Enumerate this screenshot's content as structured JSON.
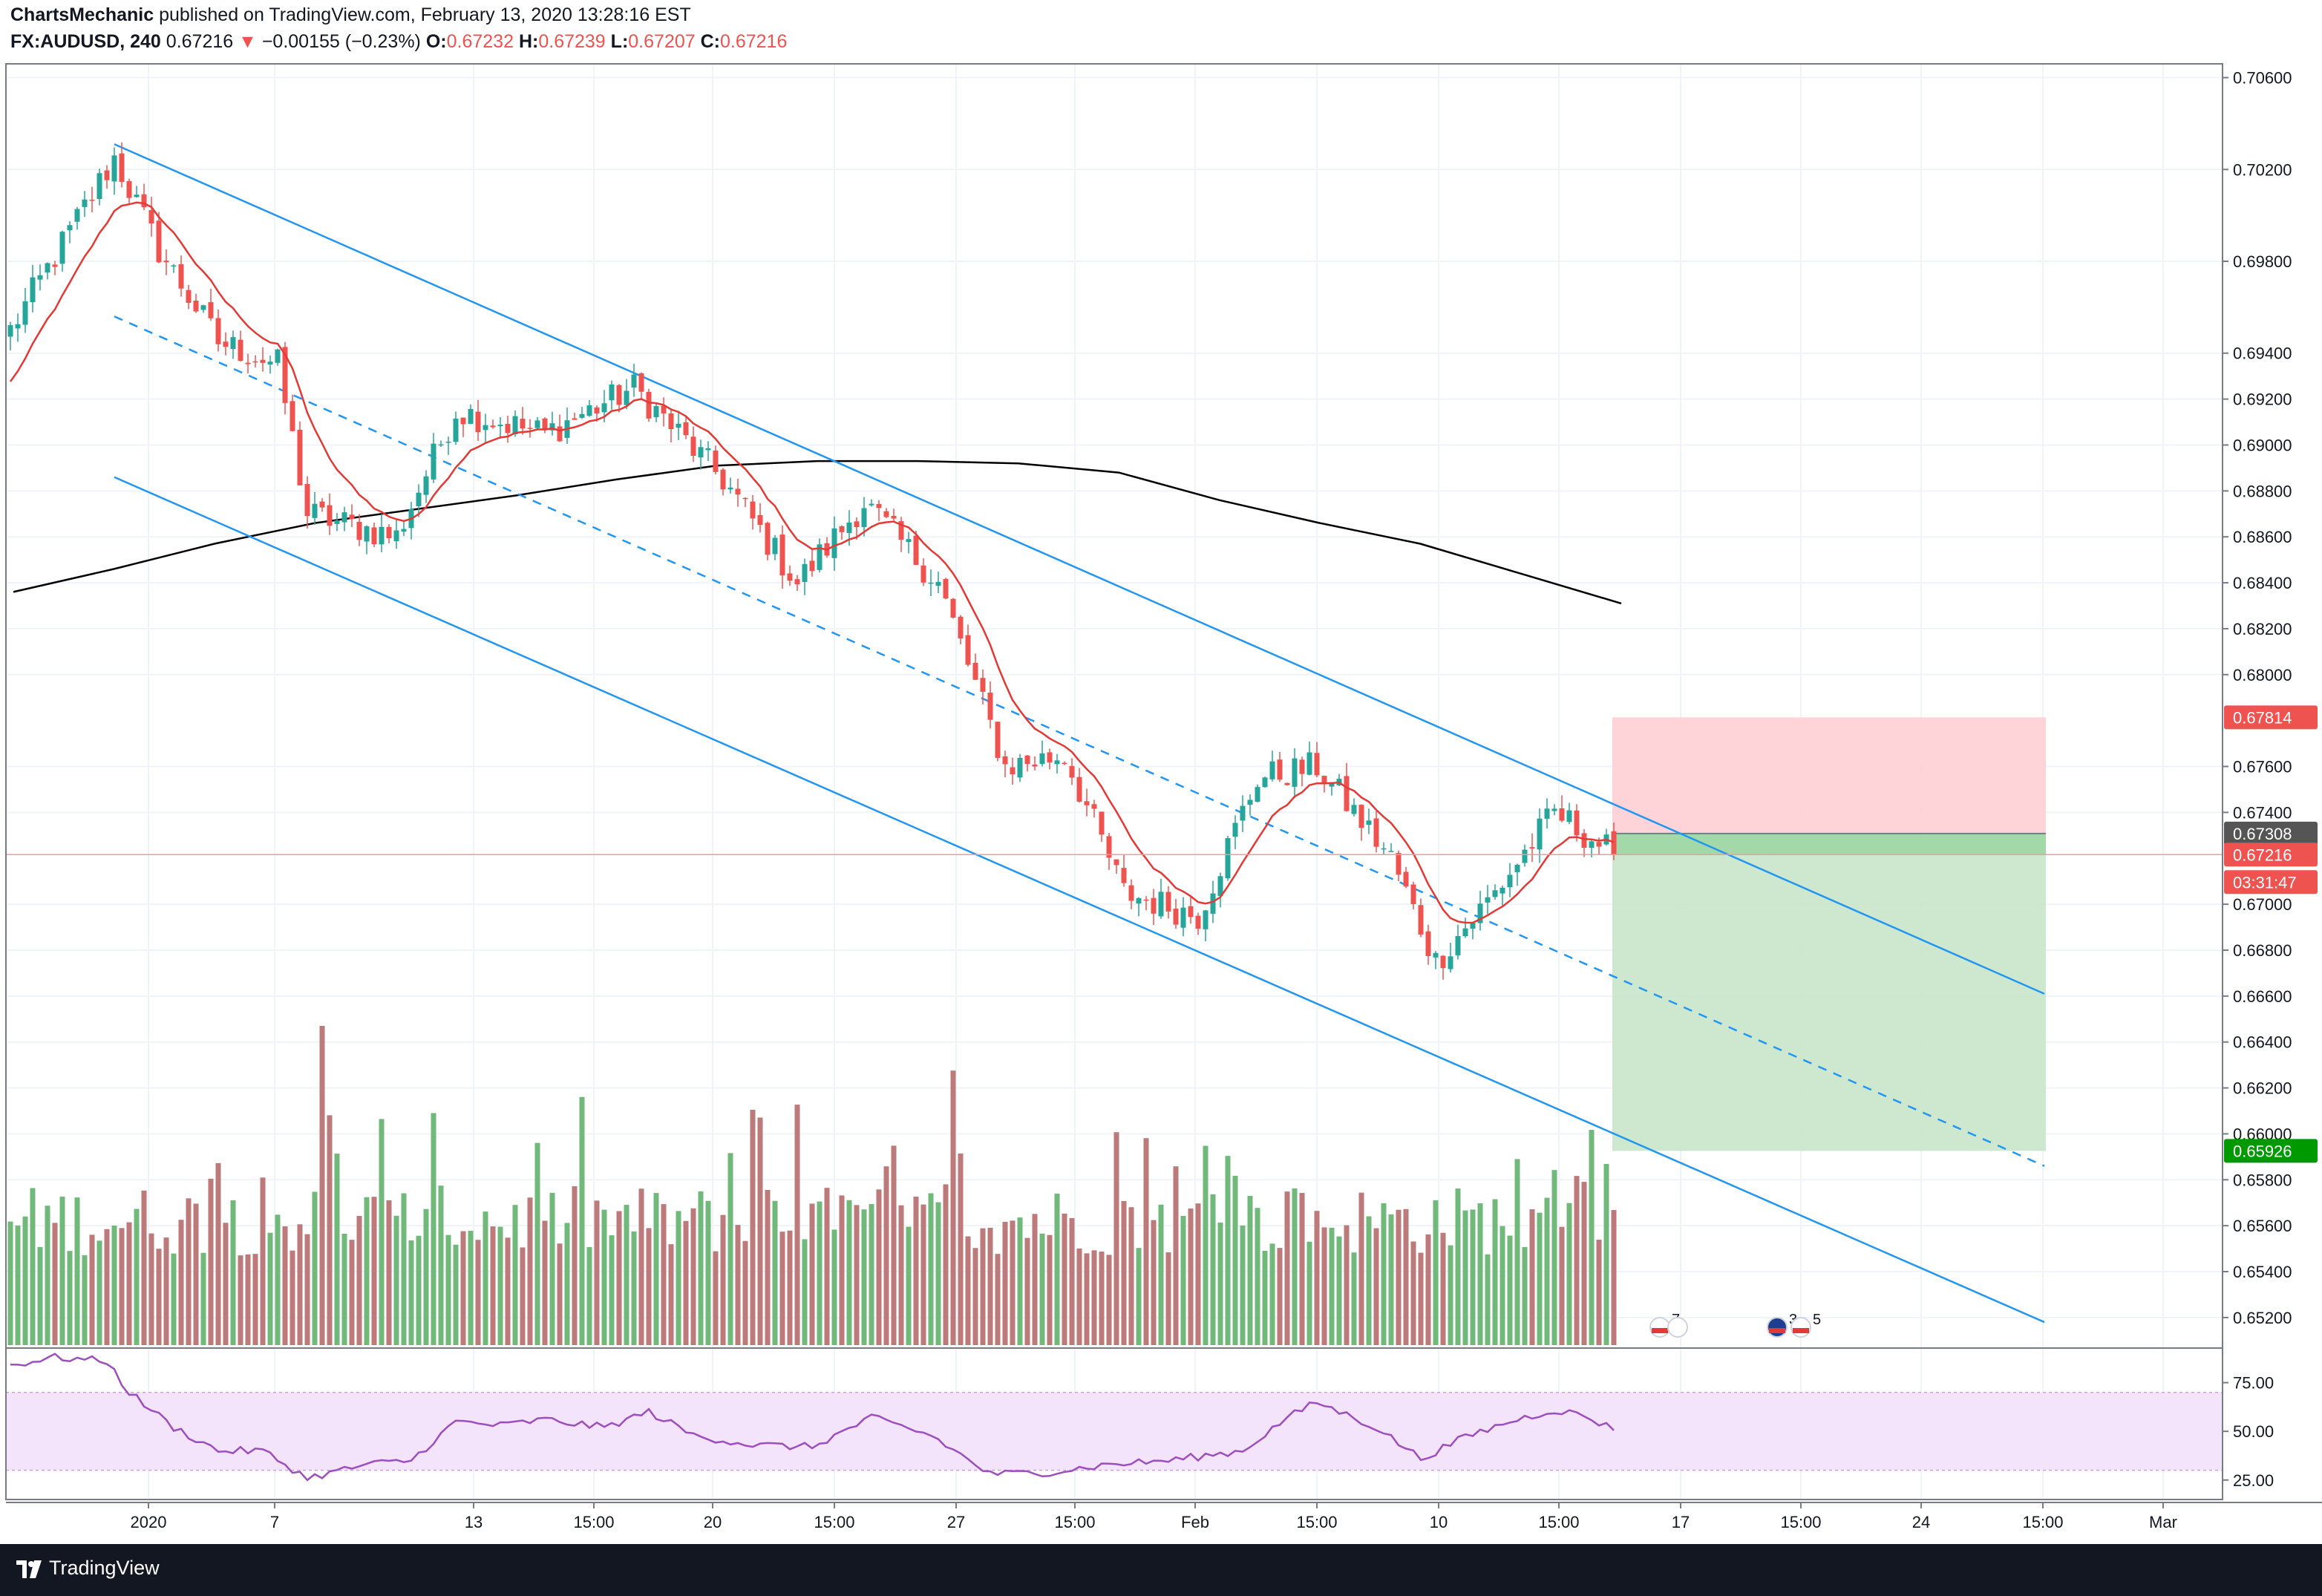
{
  "header": {
    "author": "ChartsMechanic",
    "published_text": "published on TradingView.com, February 13, 2020 13:28:16 EST",
    "symbol": "FX:AUDUSD",
    "interval": "240",
    "last": "0.67216",
    "change_arrow": "▼",
    "change": "−0.00155 (−0.23%)",
    "o_label": "O:",
    "o_value": "0.67232",
    "h_label": "H:",
    "h_value": "0.67239",
    "l_label": "L:",
    "l_value": "0.67207",
    "c_label": "C:",
    "c_value": "0.67216"
  },
  "footer": {
    "brand": "TradingView"
  },
  "colors": {
    "up": "#26a69a",
    "down": "#ef5350",
    "vol_up": "#70b97b",
    "vol_down": "#bc7a7a",
    "channel": "#2196f3",
    "ema": "#e53935",
    "ma200": "#000000",
    "rsi": "#9c4fbd",
    "rsi_band": "#f3e3fb",
    "stop_zone": "#ffcdd2",
    "target_zone": "#c8e6c9"
  },
  "chart_data": [
    {
      "type": "candlestick",
      "title": "FX:AUDUSD, 240",
      "xlabel": "",
      "ylabel": "",
      "ylim": [
        0.6508,
        0.7066
      ],
      "y_ticks": [
        "0.70600",
        "0.70200",
        "0.69800",
        "0.69400",
        "0.69200",
        "0.69000",
        "0.68800",
        "0.68600",
        "0.68400",
        "0.68200",
        "0.68000",
        "0.67600",
        "0.67400",
        "0.67000",
        "0.66800",
        "0.66600",
        "0.66400",
        "0.66200",
        "0.66000",
        "0.65800",
        "0.65600",
        "0.65400",
        "0.65200"
      ],
      "x_ticks": [
        "2020",
        "7",
        "13",
        "15:00",
        "20",
        "15:00",
        "27",
        "15:00",
        "Feb",
        "15:00",
        "10",
        "15:00",
        "17",
        "15:00",
        "24",
        "15:00",
        "Mar"
      ],
      "price_anchors": [
        {
          "t": 0,
          "p": 0.695
        },
        {
          "t": 14,
          "p": 0.7025
        },
        {
          "t": 20,
          "p": 0.6985
        },
        {
          "t": 28,
          "p": 0.6945
        },
        {
          "t": 36,
          "p": 0.6935
        },
        {
          "t": 40,
          "p": 0.687
        },
        {
          "t": 52,
          "p": 0.686
        },
        {
          "t": 60,
          "p": 0.6915
        },
        {
          "t": 72,
          "p": 0.6905
        },
        {
          "t": 84,
          "p": 0.6925
        },
        {
          "t": 96,
          "p": 0.6885
        },
        {
          "t": 106,
          "p": 0.684
        },
        {
          "t": 115,
          "p": 0.6875
        },
        {
          "t": 125,
          "p": 0.684
        },
        {
          "t": 134,
          "p": 0.676
        },
        {
          "t": 142,
          "p": 0.6765
        },
        {
          "t": 150,
          "p": 0.6705
        },
        {
          "t": 160,
          "p": 0.6695
        },
        {
          "t": 168,
          "p": 0.6755
        },
        {
          "t": 176,
          "p": 0.676
        },
        {
          "t": 186,
          "p": 0.672
        },
        {
          "t": 192,
          "p": 0.6675
        },
        {
          "t": 200,
          "p": 0.6705
        },
        {
          "t": 208,
          "p": 0.674
        },
        {
          "t": 216,
          "p": 0.6722
        }
      ],
      "last_price": 0.67216,
      "series": [
        {
          "name": "EMA",
          "type": "line"
        },
        {
          "name": "MA",
          "type": "line",
          "values": [
            0.6836,
            0.6846,
            0.6857,
            0.6866,
            0.6872,
            0.6878,
            0.6885,
            0.6891,
            0.6893,
            0.6893,
            0.6892,
            0.6888,
            0.6876,
            0.6866,
            0.6857,
            0.6844,
            0.6831
          ]
        }
      ],
      "channel_lines": [
        {
          "name": "upper",
          "style": "solid",
          "from": {
            "t": 14,
            "p": 0.7031
          },
          "to": {
            "t": 274,
            "p": 0.6661
          }
        },
        {
          "name": "middle",
          "style": "dashed",
          "from": {
            "t": 14,
            "p": 0.6956
          },
          "to": {
            "t": 274,
            "p": 0.6586
          }
        },
        {
          "name": "lower",
          "style": "solid",
          "from": {
            "t": 14,
            "p": 0.6886
          },
          "to": {
            "t": 274,
            "p": 0.6518
          }
        }
      ],
      "position": {
        "type": "short",
        "entry": 0.67308,
        "stop": 0.67814,
        "target": 0.65926
      },
      "price_labels": [
        {
          "value": "0.67814",
          "color": "#ef5350"
        },
        {
          "value": "0.67308",
          "color": "#555555"
        },
        {
          "value": "0.67216",
          "color": "#ef5350"
        },
        {
          "value": "03:31:47",
          "color": "#ef5350"
        },
        {
          "value": "0.65926",
          "color": "#009900"
        }
      ],
      "events": [
        {
          "count": "7",
          "flags": "US"
        },
        {
          "count": "3",
          "flags": "AU"
        },
        {
          "count": "5",
          "flags": "US"
        }
      ]
    },
    {
      "type": "line",
      "title": "RSI",
      "ylim": [
        15,
        92
      ],
      "y_ticks": [
        "75.00",
        "50.00",
        "25.00"
      ],
      "band": [
        30,
        70
      ],
      "anchors": [
        {
          "t": 0,
          "v": 84
        },
        {
          "t": 6,
          "v": 88
        },
        {
          "t": 13,
          "v": 86
        },
        {
          "t": 16,
          "v": 70
        },
        {
          "t": 22,
          "v": 52
        },
        {
          "t": 28,
          "v": 40
        },
        {
          "t": 34,
          "v": 40
        },
        {
          "t": 40,
          "v": 26
        },
        {
          "t": 48,
          "v": 33
        },
        {
          "t": 54,
          "v": 35
        },
        {
          "t": 60,
          "v": 55
        },
        {
          "t": 66,
          "v": 53
        },
        {
          "t": 72,
          "v": 56
        },
        {
          "t": 80,
          "v": 52
        },
        {
          "t": 86,
          "v": 60
        },
        {
          "t": 92,
          "v": 48
        },
        {
          "t": 100,
          "v": 43
        },
        {
          "t": 108,
          "v": 42
        },
        {
          "t": 116,
          "v": 57
        },
        {
          "t": 124,
          "v": 48
        },
        {
          "t": 132,
          "v": 28
        },
        {
          "t": 140,
          "v": 29
        },
        {
          "t": 148,
          "v": 33
        },
        {
          "t": 156,
          "v": 35
        },
        {
          "t": 166,
          "v": 40
        },
        {
          "t": 172,
          "v": 57
        },
        {
          "t": 176,
          "v": 65
        },
        {
          "t": 184,
          "v": 52
        },
        {
          "t": 190,
          "v": 36
        },
        {
          "t": 196,
          "v": 47
        },
        {
          "t": 202,
          "v": 55
        },
        {
          "t": 208,
          "v": 61
        },
        {
          "t": 212,
          "v": 58
        },
        {
          "t": 216,
          "v": 51
        }
      ]
    }
  ]
}
